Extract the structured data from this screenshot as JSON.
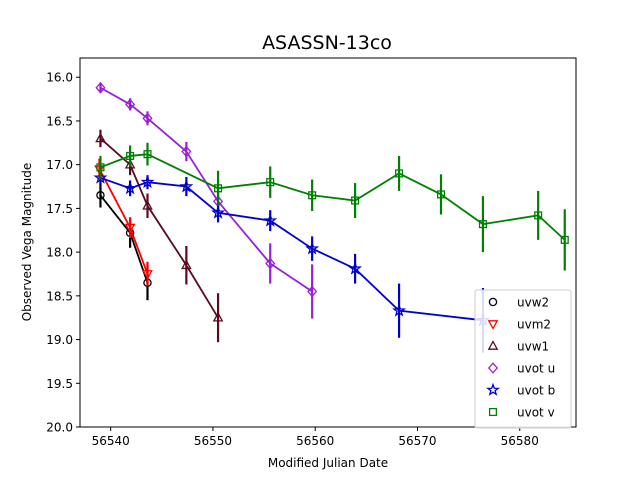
{
  "chart_data": {
    "type": "scatter",
    "title": "ASASSN-13co",
    "xlabel": "Modified Julian Date",
    "ylabel": "Observed Vega Magnitude",
    "xlim": [
      56537,
      56585.5
    ],
    "ylim": [
      20.0,
      15.78
    ],
    "y_inverted": true,
    "xticks": [
      56540,
      56550,
      56560,
      56570,
      56580
    ],
    "yticks": [
      16.0,
      16.5,
      17.0,
      17.5,
      18.0,
      18.5,
      19.0,
      19.5,
      20.0
    ],
    "legend_position": "lower-right",
    "series": [
      {
        "name": "uvw2",
        "color": "#000000",
        "marker": "circle",
        "x": [
          56539.0,
          56541.9,
          56543.6
        ],
        "y": [
          17.35,
          17.78,
          18.35
        ],
        "err": [
          0.14,
          0.17,
          0.2
        ]
      },
      {
        "name": "uvm2",
        "color": "#ff0000",
        "marker": "triangle-down",
        "x": [
          56538.9,
          56541.9,
          56543.6
        ],
        "y": [
          17.05,
          17.72,
          18.25
        ],
        "err": [
          0.12,
          0.12,
          0.14
        ]
      },
      {
        "name": "uvw1",
        "color": "#5a0a1e",
        "marker": "triangle-up",
        "x": [
          56539.0,
          56541.9,
          56543.6,
          56547.4,
          56550.5
        ],
        "y": [
          16.7,
          17.0,
          17.47,
          18.15,
          18.75
        ],
        "err": [
          0.1,
          0.12,
          0.14,
          0.22,
          0.28
        ]
      },
      {
        "name": "uvot u",
        "color": "#9a1ed6",
        "marker": "diamond",
        "x": [
          56539.0,
          56541.9,
          56543.6,
          56547.4,
          56550.5,
          56555.6,
          56559.7
        ],
        "y": [
          16.12,
          16.31,
          16.47,
          16.85,
          17.42,
          18.13,
          18.45
        ],
        "err": [
          0.06,
          0.07,
          0.08,
          0.11,
          0.14,
          0.23,
          0.31
        ]
      },
      {
        "name": "uvot b",
        "color": "#0000cc",
        "marker": "star",
        "x": [
          56539.0,
          56541.9,
          56543.6,
          56547.4,
          56550.5,
          56555.6,
          56559.7,
          56563.9,
          56568.2,
          56576.4
        ],
        "y": [
          17.15,
          17.27,
          17.2,
          17.25,
          17.55,
          17.64,
          17.96,
          18.19,
          18.67,
          18.78
        ],
        "err": [
          0.07,
          0.09,
          0.08,
          0.11,
          0.11,
          0.12,
          0.14,
          0.17,
          0.31,
          0.37
        ]
      },
      {
        "name": "uvot v",
        "color": "#008000",
        "marker": "square",
        "x": [
          56539.0,
          56541.9,
          56543.6,
          56550.5,
          56555.6,
          56559.7,
          56563.9,
          56568.2,
          56572.3,
          56576.4,
          56581.8,
          56584.4
        ],
        "y": [
          17.03,
          16.9,
          16.88,
          17.27,
          17.2,
          17.35,
          17.41,
          17.1,
          17.34,
          17.68,
          17.58,
          17.86
        ],
        "err": [
          0.13,
          0.12,
          0.13,
          0.2,
          0.18,
          0.18,
          0.2,
          0.2,
          0.23,
          0.32,
          0.28,
          0.35
        ]
      }
    ]
  }
}
